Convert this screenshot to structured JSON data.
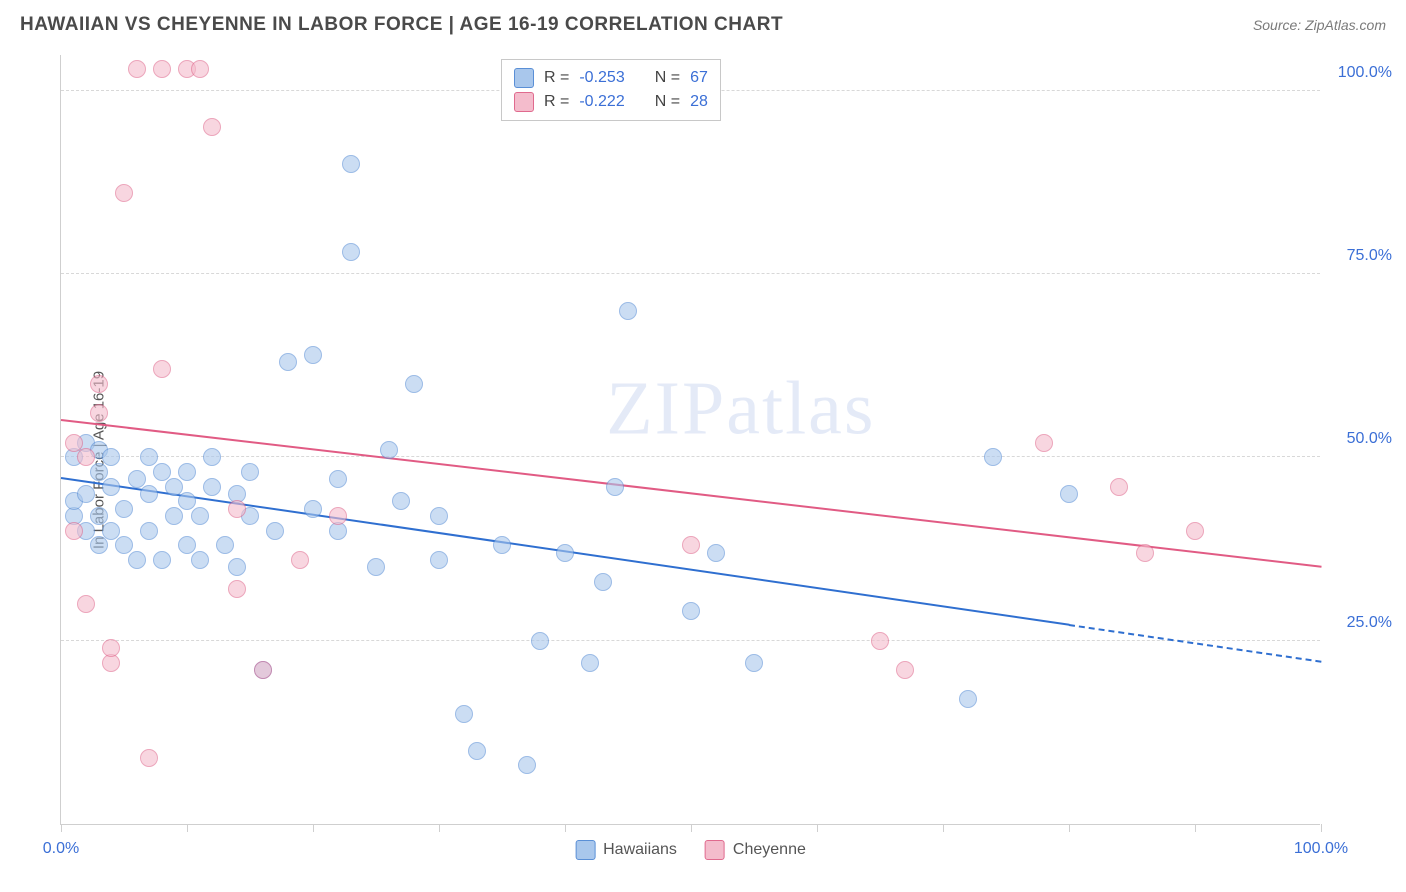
{
  "header": {
    "title": "HAWAIIAN VS CHEYENNE IN LABOR FORCE | AGE 16-19 CORRELATION CHART",
    "source": "Source: ZipAtlas.com"
  },
  "chart": {
    "type": "scatter",
    "y_axis_label": "In Labor Force | Age 16-19",
    "xlim": [
      0,
      100
    ],
    "ylim": [
      0,
      105
    ],
    "x_ticks": [
      0,
      10,
      20,
      30,
      40,
      50,
      60,
      70,
      80,
      90,
      100
    ],
    "x_tick_labels": {
      "0": "0.0%",
      "100": "100.0%"
    },
    "y_gridlines": [
      25,
      50,
      75,
      100
    ],
    "y_tick_labels": {
      "25": "25.0%",
      "50": "50.0%",
      "75": "75.0%",
      "100": "100.0%"
    },
    "background_color": "#ffffff",
    "grid_color": "#d8d8d8",
    "axis_color": "#cfcfcf",
    "marker_radius": 9,
    "marker_border_width": 1,
    "series": [
      {
        "name": "Hawaiians",
        "fill_color": "#a9c7ec",
        "border_color": "#5a8fd6",
        "fill_opacity": 0.6,
        "R": "-0.253",
        "N": "67",
        "trend": {
          "x1": 0,
          "y1": 47,
          "x2": 80,
          "y2": 27,
          "extend_x2": 100,
          "extend_y2": 22,
          "color": "#2f6fd0",
          "width": 2
        },
        "points": [
          [
            1,
            42
          ],
          [
            1,
            44
          ],
          [
            1,
            50
          ],
          [
            2,
            40
          ],
          [
            2,
            45
          ],
          [
            2,
            52
          ],
          [
            3,
            38
          ],
          [
            3,
            42
          ],
          [
            3,
            48
          ],
          [
            3,
            51
          ],
          [
            4,
            40
          ],
          [
            4,
            46
          ],
          [
            4,
            50
          ],
          [
            5,
            38
          ],
          [
            5,
            43
          ],
          [
            6,
            36
          ],
          [
            6,
            47
          ],
          [
            7,
            40
          ],
          [
            7,
            45
          ],
          [
            7,
            50
          ],
          [
            8,
            48
          ],
          [
            8,
            36
          ],
          [
            9,
            42
          ],
          [
            9,
            46
          ],
          [
            10,
            38
          ],
          [
            10,
            44
          ],
          [
            10,
            48
          ],
          [
            11,
            36
          ],
          [
            11,
            42
          ],
          [
            12,
            46
          ],
          [
            12,
            50
          ],
          [
            13,
            38
          ],
          [
            14,
            45
          ],
          [
            14,
            35
          ],
          [
            15,
            42
          ],
          [
            15,
            48
          ],
          [
            16,
            21
          ],
          [
            17,
            40
          ],
          [
            18,
            63
          ],
          [
            20,
            43
          ],
          [
            20,
            64
          ],
          [
            22,
            40
          ],
          [
            22,
            47
          ],
          [
            23,
            78
          ],
          [
            23,
            90
          ],
          [
            25,
            35
          ],
          [
            26,
            51
          ],
          [
            27,
            44
          ],
          [
            28,
            60
          ],
          [
            30,
            42
          ],
          [
            30,
            36
          ],
          [
            32,
            15
          ],
          [
            33,
            10
          ],
          [
            35,
            38
          ],
          [
            37,
            8
          ],
          [
            38,
            25
          ],
          [
            40,
            37
          ],
          [
            42,
            22
          ],
          [
            43,
            33
          ],
          [
            44,
            46
          ],
          [
            45,
            70
          ],
          [
            50,
            29
          ],
          [
            52,
            37
          ],
          [
            55,
            22
          ],
          [
            72,
            17
          ],
          [
            74,
            50
          ],
          [
            80,
            45
          ]
        ]
      },
      {
        "name": "Cheyenne",
        "fill_color": "#f4bccc",
        "border_color": "#e06a8e",
        "fill_opacity": 0.6,
        "R": "-0.222",
        "N": "28",
        "trend": {
          "x1": 0,
          "y1": 55,
          "x2": 100,
          "y2": 35,
          "color": "#e15b84",
          "width": 2
        },
        "points": [
          [
            1,
            40
          ],
          [
            1,
            52
          ],
          [
            2,
            30
          ],
          [
            2,
            50
          ],
          [
            3,
            56
          ],
          [
            3,
            60
          ],
          [
            4,
            22
          ],
          [
            4,
            24
          ],
          [
            5,
            86
          ],
          [
            6,
            103
          ],
          [
            7,
            9
          ],
          [
            8,
            62
          ],
          [
            8,
            103
          ],
          [
            10,
            103
          ],
          [
            11,
            103
          ],
          [
            12,
            95
          ],
          [
            14,
            32
          ],
          [
            14,
            43
          ],
          [
            16,
            21
          ],
          [
            19,
            36
          ],
          [
            22,
            42
          ],
          [
            50,
            38
          ],
          [
            65,
            25
          ],
          [
            67,
            21
          ],
          [
            78,
            52
          ],
          [
            84,
            46
          ],
          [
            86,
            37
          ],
          [
            90,
            40
          ]
        ]
      }
    ],
    "legend_top": {
      "rows": [
        {
          "swatch_fill": "#a9c7ec",
          "swatch_border": "#5a8fd6",
          "r_label": "R =",
          "r_val": "-0.253",
          "n_label": "N =",
          "n_val": "67"
        },
        {
          "swatch_fill": "#f4bccc",
          "swatch_border": "#e06a8e",
          "r_label": "R =",
          "r_val": "-0.222",
          "n_label": "N =",
          "n_val": "28"
        }
      ]
    },
    "legend_bottom": [
      {
        "swatch_fill": "#a9c7ec",
        "swatch_border": "#5a8fd6",
        "label": "Hawaiians"
      },
      {
        "swatch_fill": "#f4bccc",
        "swatch_border": "#e06a8e",
        "label": "Cheyenne"
      }
    ],
    "watermark": {
      "text_bold": "ZIP",
      "text_thin": "atlas"
    }
  }
}
